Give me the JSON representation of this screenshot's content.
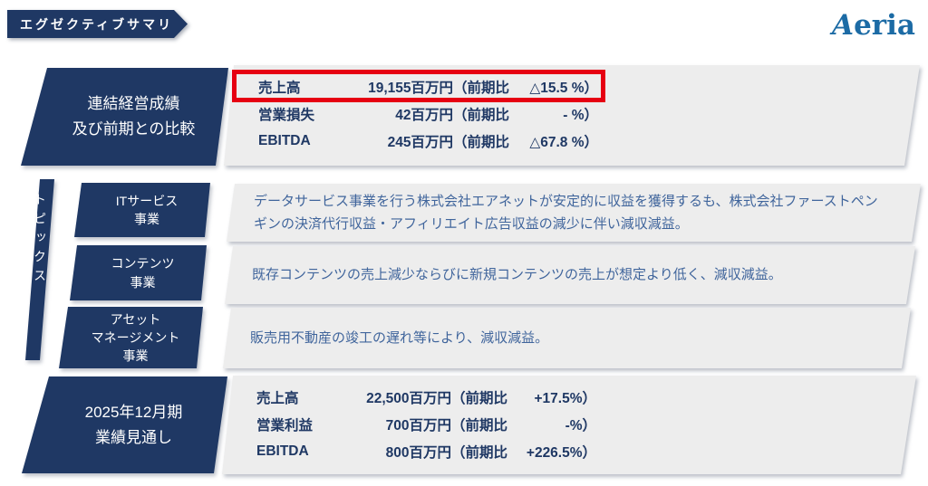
{
  "header": {
    "banner_label": "エグゼクティブサマリ",
    "logo_text": "Aeria"
  },
  "colors": {
    "navy": "#1f3864",
    "panel_gray": "#ededed",
    "highlight_red": "#e60012",
    "logo_blue": "#1c6ba5",
    "description_blue": "#40659c"
  },
  "sections": {
    "results": {
      "label_lines": [
        "連結経営成績",
        "及び前期との比較"
      ],
      "rows": [
        {
          "label": "売上高",
          "amount": "19,155百万円",
          "yoy": "（前期比",
          "pct": "△15.5 %）",
          "highlighted": true
        },
        {
          "label": "営業損失",
          "amount": "42百万円",
          "yoy": "（前期比",
          "pct": "- %）",
          "highlighted": false
        },
        {
          "label": "EBITDA",
          "amount": "245百万円",
          "yoy": "（前期比",
          "pct": "△67.8 %）",
          "highlighted": false
        }
      ]
    },
    "topics": {
      "label": "トピックス",
      "items": [
        {
          "title_lines": [
            "ITサービス",
            "事業"
          ],
          "description": "データサービス事業を行う株式会社エアネットが安定的に収益を獲得するも、株式会社ファーストペンギンの決済代行収益・アフィリエイト広告収益の減少に伴い減収減益。"
        },
        {
          "title_lines": [
            "コンテンツ",
            "事業"
          ],
          "description": "既存コンテンツの売上減少ならびに新規コンテンツの売上が想定より低く、減収減益。"
        },
        {
          "title_lines": [
            "アセット",
            "マネージメント",
            "事業"
          ],
          "description": "販売用不動産の竣工の遅れ等により、減収減益。"
        }
      ]
    },
    "forecast": {
      "label_lines": [
        "2025年12月期",
        "業績見通し"
      ],
      "rows": [
        {
          "label": "売上高",
          "amount": "22,500百万円",
          "yoy": "（前期比",
          "pct": "+17.5%）"
        },
        {
          "label": "営業利益",
          "amount": "700百万円",
          "yoy": "（前期比",
          "pct": "-%）"
        },
        {
          "label": "EBITDA",
          "amount": "800百万円",
          "yoy": "（前期比",
          "pct": "+226.5%）"
        }
      ]
    }
  }
}
